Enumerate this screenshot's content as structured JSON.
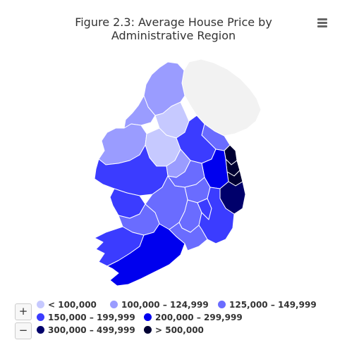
{
  "title": {
    "line1": "Figure 2.3: Average House Price by",
    "line2": "Administrative Region"
  },
  "menu": {
    "icon": "hamburger-menu-icon"
  },
  "zoom": {
    "in_label": "+",
    "out_label": "−"
  },
  "legend": [
    {
      "label": "< 100,000",
      "color": "#c6c9ff"
    },
    {
      "label": "100,000 – 124,999",
      "color": "#9a9cff"
    },
    {
      "label": "125,000 – 149,999",
      "color": "#6a6cff"
    },
    {
      "label": "150,000 – 199,999",
      "color": "#3b3cff"
    },
    {
      "label": "200,000 – 299,999",
      "color": "#0000ee"
    },
    {
      "label": "300,000 – 499,999",
      "color": "#00006b"
    },
    {
      "label": "> 500,000",
      "color": "#000033"
    }
  ],
  "map": {
    "no_data_color": "#f2f2f2",
    "border_color": "#ffffff"
  }
}
